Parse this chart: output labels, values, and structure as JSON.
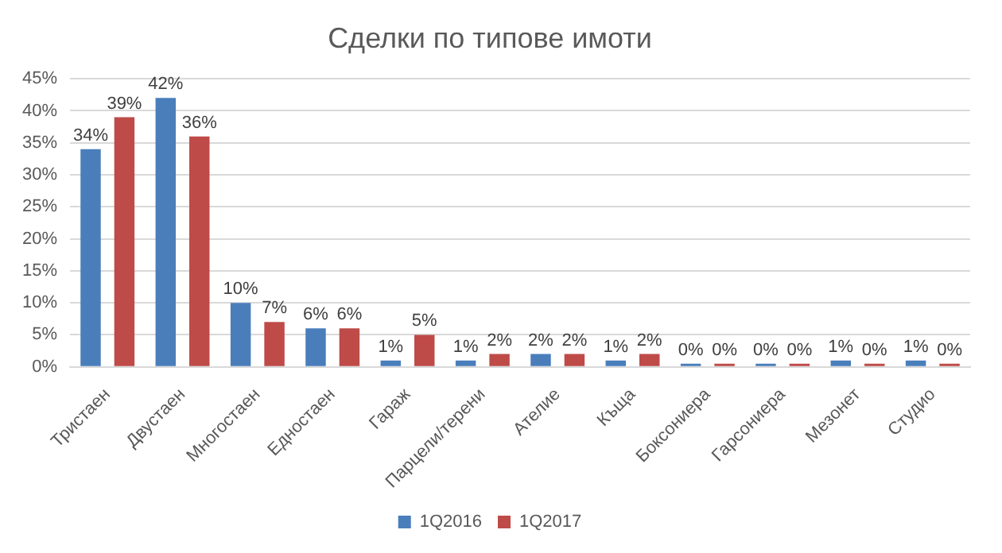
{
  "chart_data": {
    "type": "bar",
    "title": "Сделки по типове имоти",
    "categories": [
      "Тристаен",
      "Двустаен",
      "Многостаен",
      "Едностаен",
      "Гараж",
      "Парцели/терени",
      "Ателие",
      "Къща",
      "Боксониера",
      "Гарсониера",
      "Мезонет",
      "Студио"
    ],
    "series": [
      {
        "name": "1Q2016",
        "color": "#4a7ebb",
        "values": [
          34,
          42,
          10,
          6,
          1,
          1,
          2,
          1,
          0,
          0,
          1,
          1
        ],
        "value_labels": [
          "34%",
          "42%",
          "10%",
          "6%",
          "1%",
          "1%",
          "2%",
          "1%",
          "0%",
          "0%",
          "1%",
          "1%"
        ]
      },
      {
        "name": "1Q2017",
        "color": "#be4b48",
        "values": [
          39,
          36,
          7,
          6,
          5,
          2,
          2,
          2,
          0,
          0,
          0,
          0
        ],
        "value_labels": [
          "39%",
          "36%",
          "7%",
          "6%",
          "5%",
          "2%",
          "2%",
          "2%",
          "0%",
          "0%",
          "0%",
          "0%"
        ]
      }
    ],
    "ylim": [
      0,
      45
    ],
    "yticks": [
      {
        "value": 0,
        "label": "0%"
      },
      {
        "value": 5,
        "label": "5%"
      },
      {
        "value": 10,
        "label": "10%"
      },
      {
        "value": 15,
        "label": "15%"
      },
      {
        "value": 20,
        "label": "20%"
      },
      {
        "value": 25,
        "label": "25%"
      },
      {
        "value": 30,
        "label": "30%"
      },
      {
        "value": 35,
        "label": "35%"
      },
      {
        "value": 40,
        "label": "40%"
      },
      {
        "value": 45,
        "label": "45%"
      }
    ],
    "grid": "y",
    "legend": "bottom"
  }
}
